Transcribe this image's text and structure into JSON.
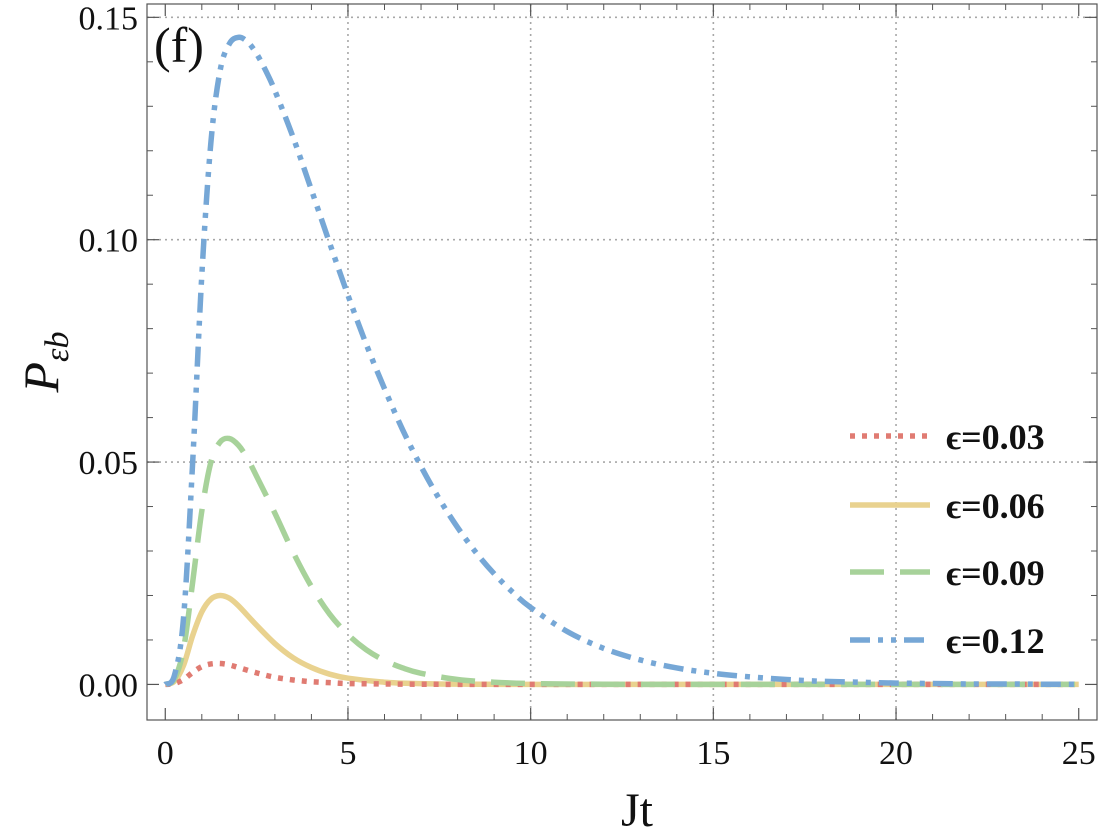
{
  "chart_data": {
    "type": "line",
    "panel_label": "(f)",
    "xlabel": "Jt",
    "ylabel": "P",
    "ylabel_sub": "εb",
    "xlim": [
      -0.5,
      25.5
    ],
    "ylim": [
      -0.008,
      0.153
    ],
    "x_ticks": [
      0,
      5,
      10,
      15,
      20,
      25
    ],
    "x_tick_labels": [
      "0",
      "5",
      "10",
      "15",
      "20",
      "25"
    ],
    "y_ticks": [
      0.0,
      0.05,
      0.1,
      0.15
    ],
    "y_tick_labels": [
      "0.00",
      "0.05",
      "0.10",
      "0.15"
    ],
    "grid": true,
    "legend_position": "right",
    "series": [
      {
        "name": "ϵ=0.03",
        "color": "#e07b72",
        "style": "dotted",
        "x": [
          0,
          0.25,
          0.5,
          0.75,
          1.0,
          1.25,
          1.5,
          1.75,
          2.0,
          2.5,
          3.0,
          3.5,
          4.0,
          4.5,
          5.0,
          6.0,
          7.0,
          8.0,
          10.0,
          12.0,
          15.0,
          20.0,
          25.0
        ],
        "y": [
          0.0,
          0.0002,
          0.0011,
          0.0027,
          0.004,
          0.0046,
          0.0047,
          0.0044,
          0.0038,
          0.0026,
          0.0016,
          0.001,
          0.0006,
          0.0004,
          0.0002,
          0.0001,
          4e-05,
          2e-05,
          0.0,
          0.0,
          0.0,
          0.0,
          0.0
        ]
      },
      {
        "name": "ϵ=0.06",
        "color": "#e9d28f",
        "style": "solid",
        "x": [
          0,
          0.25,
          0.5,
          0.75,
          1.0,
          1.25,
          1.5,
          1.75,
          2.0,
          2.5,
          3.0,
          3.5,
          4.0,
          4.5,
          5.0,
          6.0,
          7.0,
          8.0,
          10.0,
          12.0,
          15.0,
          20.0,
          25.0
        ],
        "y": [
          0.0,
          0.0007,
          0.0043,
          0.011,
          0.0163,
          0.0192,
          0.02,
          0.0194,
          0.0177,
          0.0133,
          0.0092,
          0.006,
          0.0038,
          0.0023,
          0.0014,
          0.0005,
          0.00018,
          6e-05,
          0.0,
          0.0,
          0.0,
          0.0,
          0.0
        ]
      },
      {
        "name": "ϵ=0.09",
        "color": "#a7d29a",
        "style": "dashed",
        "x": [
          0,
          0.25,
          0.5,
          0.75,
          1.0,
          1.25,
          1.5,
          1.75,
          2.0,
          2.25,
          2.5,
          3.0,
          3.5,
          4.0,
          4.5,
          5.0,
          5.5,
          6.0,
          6.5,
          7.0,
          8.0,
          9.0,
          10.0,
          12.0,
          15.0,
          20.0,
          25.0
        ],
        "y": [
          0.0,
          0.0012,
          0.008,
          0.023,
          0.039,
          0.05,
          0.0545,
          0.0553,
          0.0538,
          0.0508,
          0.0468,
          0.0385,
          0.0297,
          0.022,
          0.0158,
          0.0112,
          0.0078,
          0.0054,
          0.0037,
          0.0025,
          0.0011,
          0.0005,
          0.0002,
          4e-05,
          0.0,
          0.0,
          0.0
        ]
      },
      {
        "name": "ϵ=0.12",
        "color": "#76a7d6",
        "style": "dashdotdot",
        "x": [
          0,
          0.25,
          0.5,
          0.75,
          1.0,
          1.25,
          1.5,
          1.75,
          2.0,
          2.25,
          2.5,
          2.75,
          3.0,
          3.5,
          4.0,
          4.5,
          5.0,
          5.5,
          6.0,
          6.5,
          7.0,
          7.5,
          8.0,
          8.5,
          9.0,
          9.5,
          10.0,
          11.0,
          12.0,
          13.0,
          14.0,
          15.0,
          16.0,
          17.0,
          18.0,
          19.0,
          20.0,
          21.0,
          22.0,
          23.0,
          24.0,
          25.0
        ],
        "y": [
          0.0,
          0.002,
          0.015,
          0.05,
          0.092,
          0.122,
          0.138,
          0.144,
          0.1455,
          0.1445,
          0.1418,
          0.138,
          0.1335,
          0.123,
          0.1112,
          0.0992,
          0.0875,
          0.0765,
          0.0665,
          0.0572,
          0.049,
          0.0417,
          0.0353,
          0.0297,
          0.0249,
          0.0208,
          0.0173,
          0.0119,
          0.0081,
          0.0055,
          0.0037,
          0.0025,
          0.0017,
          0.0011,
          0.0007,
          0.0005,
          0.0003,
          0.0002,
          0.0001,
          0.0001,
          5e-05,
          3e-05
        ]
      }
    ]
  }
}
